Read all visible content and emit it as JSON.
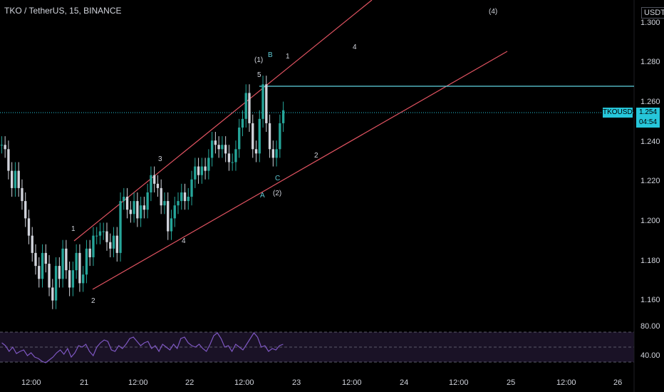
{
  "header": {
    "title": "TKO / TetherUS, 15, BINANCE",
    "currency": "USDT"
  },
  "price_axis": {
    "ticks": [
      "1.300",
      "1.280",
      "1.260",
      "1.240",
      "1.220",
      "1.200",
      "1.180",
      "1.160"
    ]
  },
  "time_axis": {
    "ticks": [
      "12:00",
      "21",
      "12:00",
      "22",
      "12:00",
      "23",
      "12:00",
      "24",
      "12:00",
      "25",
      "12:00",
      "26"
    ]
  },
  "indicator_axis": {
    "ticks": [
      "80.00",
      "40.00"
    ]
  },
  "last_price": {
    "symbol": "TKOUSDT",
    "price": "1.254",
    "countdown": "04:54"
  },
  "wave_labels": [
    "1",
    "2",
    "3",
    "4",
    "5",
    "(1)",
    "A",
    "B",
    "C",
    "(2)",
    "1",
    "2",
    "4",
    "(4)"
  ],
  "colors": {
    "background": "#000000",
    "up_candle": "#26a69a",
    "down_candle": "#d1d4dc",
    "trendline": "#e05361",
    "resistance": "#5fd3e0",
    "rsi_line": "#7e57c2",
    "rsi_band": "#1a1226",
    "last_price_tag": "#26c6da"
  },
  "chart_data": [
    {
      "type": "line",
      "series": [
        {
          "values": [
            1.238,
            1.236,
            1.226,
            1.218,
            1.226,
            1.218,
            1.212,
            1.204,
            1.196,
            1.188,
            1.182,
            1.176,
            1.188,
            1.183,
            1.172,
            1.166,
            1.182,
            1.176,
            1.19,
            1.18,
            1.172,
            1.18,
            1.188,
            1.174,
            1.178,
            1.19,
            1.186,
            1.196,
            1.196,
            1.198,
            1.198,
            1.193,
            1.19,
            1.196,
            1.188,
            1.212,
            1.214,
            1.208,
            1.206,
            1.212,
            1.204,
            1.21,
            1.208,
            1.216,
            1.224,
            1.22,
            1.218,
            1.21,
            1.212,
            1.198,
            1.204,
            1.21,
            1.212,
            1.216,
            1.212,
            1.214,
            1.222,
            1.228,
            1.224,
            1.228,
            1.226,
            1.232,
            1.24,
            1.238,
            1.236,
            1.238,
            1.234,
            1.23,
            1.23,
            1.236,
            1.246,
            1.25,
            1.262,
            1.248,
            1.236,
            1.234,
            1.25,
            1.266,
            1.248,
            1.236,
            1.232,
            1.236,
            1.248,
            1.254
          ]
        }
      ],
      "xlabel": "",
      "ylabel": "USDT",
      "ylim": [
        1.155,
        1.305
      ],
      "annotations": [
        "Resistance line at 1.268",
        "Last price line at 1.254",
        "Upper and lower trendlines forming a rising channel"
      ]
    },
    {
      "type": "line",
      "series": [
        {
          "values": [
            64,
            60,
            52,
            58,
            49,
            52,
            54,
            46,
            50,
            44,
            42,
            38,
            36,
            40,
            44,
            50,
            54,
            48,
            56,
            44,
            50,
            60,
            58,
            62,
            52,
            46,
            58,
            64,
            68,
            66,
            54,
            52,
            60,
            56,
            62,
            70,
            72,
            66,
            60,
            64,
            66,
            56,
            60,
            52,
            62,
            58,
            54,
            62,
            56,
            70,
            72,
            64,
            60,
            58,
            62,
            56,
            52,
            62,
            74,
            78,
            70,
            58,
            60,
            52,
            62,
            58,
            54,
            62,
            70,
            78,
            72,
            58,
            60,
            52,
            56,
            54,
            60,
            62
          ]
        }
      ],
      "ylim": [
        25,
        90
      ],
      "annotations": [
        "Upper band 70",
        "Middle 50",
        "Lower band 30"
      ]
    }
  ]
}
